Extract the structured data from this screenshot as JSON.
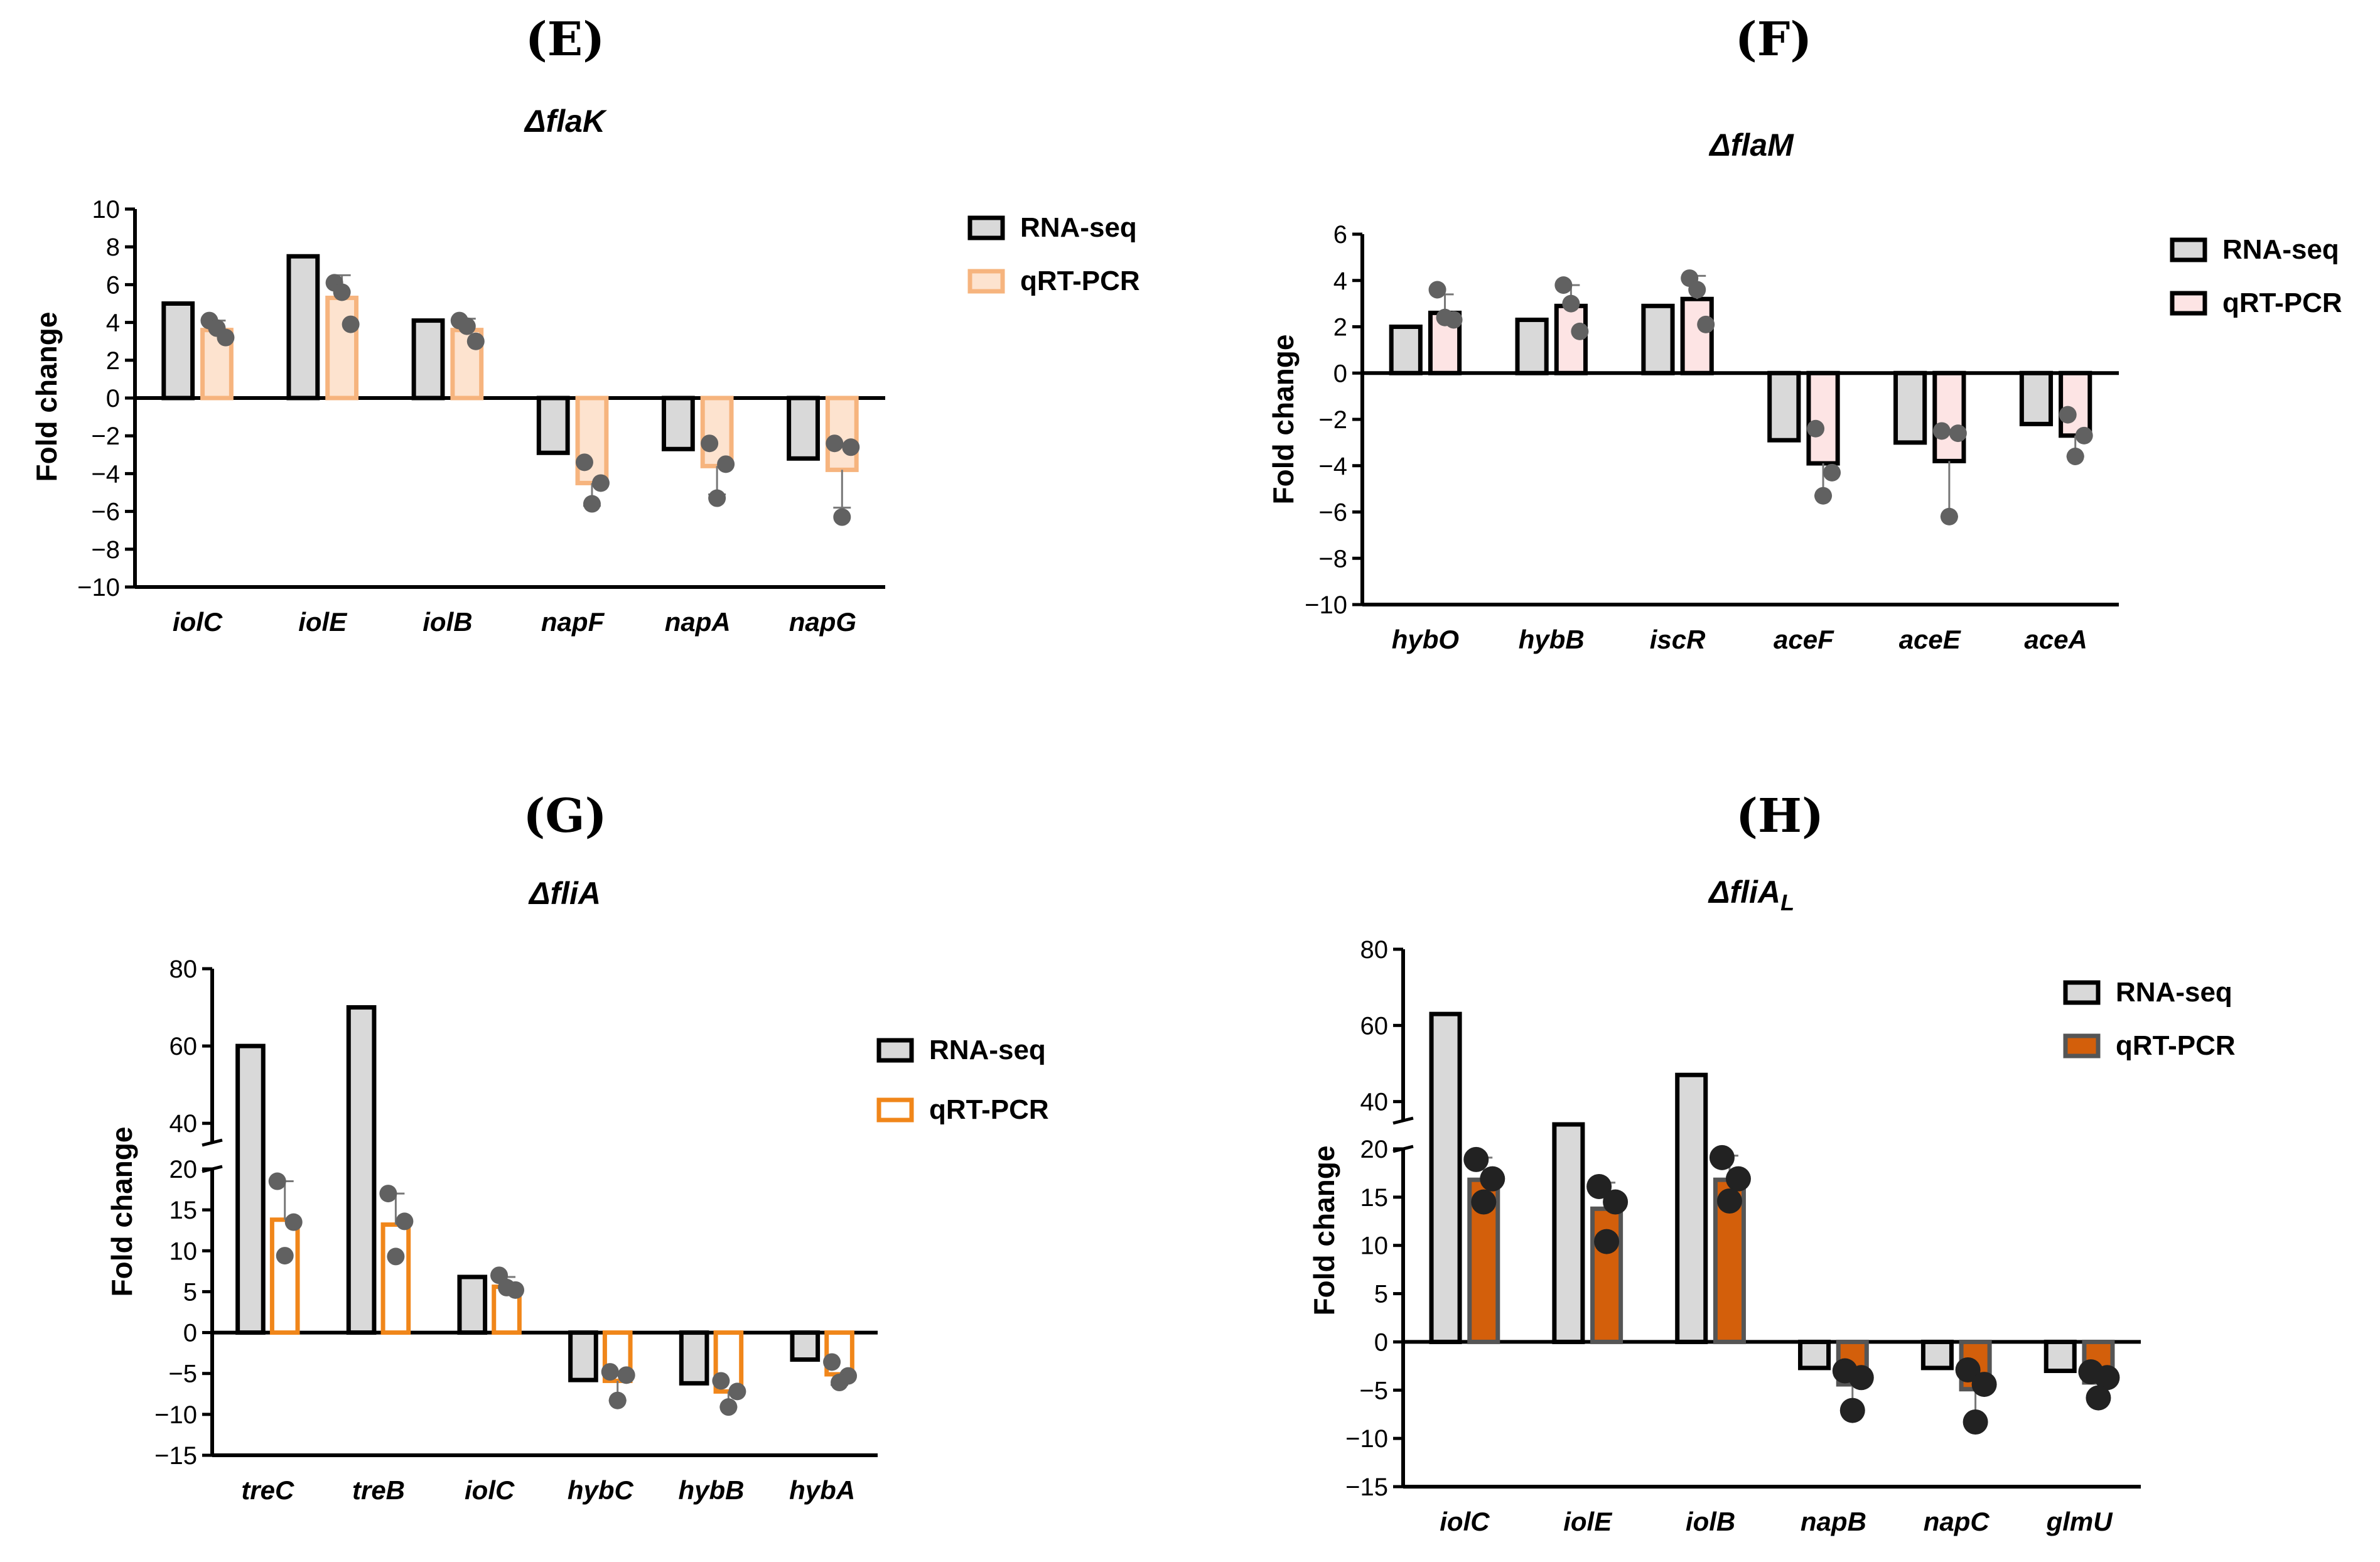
{
  "chart_data": [
    {
      "panel": "(E)",
      "type": "bar",
      "title": "ΔflaK",
      "title_parts": [
        {
          "t": "Δ"
        },
        {
          "t": "flaK"
        }
      ],
      "ylabel": "Fold change",
      "xlabel": "",
      "ylim": [
        -10,
        10
      ],
      "yticks": [
        10,
        8,
        6,
        4,
        2,
        0,
        -2,
        -4,
        -6,
        -8,
        -10
      ],
      "categories": [
        "iolC",
        "iolE",
        "iolB",
        "napF",
        "napA",
        "napG"
      ],
      "series": [
        {
          "name": "RNA-seq",
          "values": [
            5.0,
            7.5,
            4.1,
            -2.9,
            -2.7,
            -3.2
          ],
          "fill": "#d9d9d9",
          "stroke": "#000000"
        },
        {
          "name": "qRT-PCR",
          "values": [
            3.6,
            5.3,
            3.6,
            -4.5,
            -3.6,
            -3.8
          ],
          "fill": "#fde3cf",
          "stroke": "#f6b47e",
          "errors": [
            0.5,
            1.2,
            0.6,
            1.2,
            1.5,
            2.0
          ],
          "points": [
            [
              4.1,
              3.2,
              3.7
            ],
            [
              6.1,
              3.9,
              5.6
            ],
            [
              4.1,
              3.0,
              3.8
            ],
            [
              -3.4,
              -4.5,
              -5.6
            ],
            [
              -2.4,
              -3.5,
              -5.3
            ],
            [
              -2.4,
              -2.6,
              -6.3
            ]
          ]
        }
      ],
      "legend_position": "right"
    },
    {
      "panel": "(F)",
      "type": "bar",
      "title": "ΔflaM",
      "title_parts": [
        {
          "t": "Δ"
        },
        {
          "t": "flaM"
        }
      ],
      "ylabel": "Fold change",
      "xlabel": "",
      "ylim": [
        -10,
        6
      ],
      "yticks": [
        6,
        4,
        2,
        0,
        -2,
        -4,
        -6,
        -8,
        -10
      ],
      "categories": [
        "hybO",
        "hybB",
        "iscR",
        "aceF",
        "aceE",
        "aceA"
      ],
      "series": [
        {
          "name": "RNA-seq",
          "values": [
            2.0,
            2.3,
            2.9,
            -2.9,
            -3.0,
            -2.2
          ],
          "fill": "#d9d9d9",
          "stroke": "#000000"
        },
        {
          "name": "qRT-PCR",
          "values": [
            2.6,
            2.9,
            3.2,
            -3.9,
            -3.8,
            -2.7
          ],
          "fill": "#fde4e4",
          "stroke": "#000000",
          "errors": [
            0.8,
            0.9,
            1.0,
            1.4,
            2.4,
            0.9
          ],
          "points": [
            [
              3.6,
              2.3,
              2.4
            ],
            [
              3.8,
              1.8,
              3.0
            ],
            [
              4.1,
              2.1,
              3.6
            ],
            [
              -2.4,
              -4.3,
              -5.3
            ],
            [
              -2.5,
              -2.6,
              -6.2
            ],
            [
              -1.8,
              -2.7,
              -3.6
            ]
          ]
        }
      ],
      "legend_position": "right"
    },
    {
      "panel": "(G)",
      "type": "bar",
      "title": "ΔfliA",
      "title_parts": [
        {
          "t": "Δ"
        },
        {
          "t": "fliA"
        }
      ],
      "ylabel": "Fold change",
      "xlabel": "",
      "ylim": [
        -15,
        80
      ],
      "axis_break": [
        20,
        35
      ],
      "yticks": [
        80,
        60,
        40,
        20,
        15,
        10,
        5,
        0,
        -5,
        -10,
        -15
      ],
      "categories": [
        "treC",
        "treB",
        "iolC",
        "hybC",
        "hybB",
        "hybA"
      ],
      "series": [
        {
          "name": "RNA-seq",
          "values": [
            60,
            70,
            6.8,
            -5.8,
            -6.2,
            -3.3
          ],
          "fill": "#d9d9d9",
          "stroke": "#000000"
        },
        {
          "name": "qRT-PCR",
          "values": [
            13.8,
            13.2,
            5.6,
            -5.9,
            -7.2,
            -5.1
          ],
          "fill": "#ffffff",
          "stroke": "#f0861a",
          "errors": [
            4.7,
            3.8,
            1.2,
            2.4,
            1.9,
            1.3
          ],
          "points": [
            [
              18.5,
              13.5,
              9.4
            ],
            [
              17.0,
              13.6,
              9.3
            ],
            [
              7.0,
              5.2,
              5.5
            ],
            [
              -4.8,
              -5.2,
              -8.3
            ],
            [
              -5.9,
              -7.2,
              -9.1
            ],
            [
              -3.6,
              -5.3,
              -6.1
            ]
          ]
        }
      ],
      "legend_position": "right"
    },
    {
      "panel": "(H)",
      "type": "bar",
      "title": "ΔfliAL",
      "title_parts": [
        {
          "t": "Δ"
        },
        {
          "t": "fliA"
        },
        {
          "t": "L",
          "sub": true
        }
      ],
      "ylabel": "Fold change",
      "xlabel": "",
      "ylim": [
        -15,
        80
      ],
      "axis_break": [
        20,
        35
      ],
      "yticks": [
        80,
        60,
        40,
        20,
        15,
        10,
        5,
        0,
        -5,
        -10,
        -15
      ],
      "categories": [
        "iolC",
        "iolE",
        "iolB",
        "napB",
        "napC",
        "glmU"
      ],
      "series": [
        {
          "name": "RNA-seq",
          "values": [
            63,
            30,
            47,
            -2.7,
            -2.7,
            -3.0
          ],
          "fill": "#d9d9d9",
          "stroke": "#000000"
        },
        {
          "name": "qRT-PCR",
          "values": [
            16.8,
            13.8,
            16.8,
            -4.4,
            -4.9,
            -4.2
          ],
          "fill": "#d35f0b",
          "stroke": "#555555",
          "errors": [
            2.3,
            2.7,
            2.5,
            2.4,
            3.0,
            1.4
          ],
          "points": [
            [
              18.9,
              16.9,
              14.5
            ],
            [
              16.1,
              14.5,
              10.4
            ],
            [
              19.1,
              16.9,
              14.6
            ],
            [
              -3.0,
              -3.7,
              -7.1
            ],
            [
              -2.9,
              -4.4,
              -8.3
            ],
            [
              -3.1,
              -3.7,
              -5.8
            ]
          ]
        }
      ],
      "legend_position": "right"
    }
  ]
}
